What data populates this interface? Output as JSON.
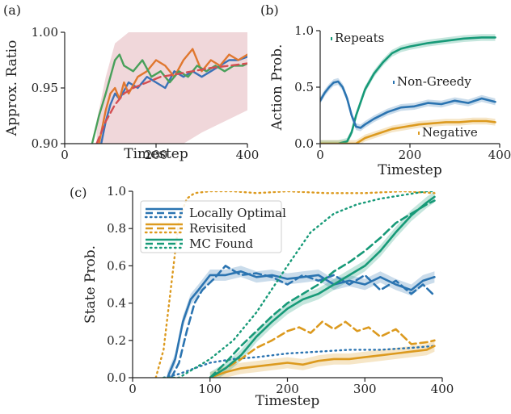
{
  "chart_data": [
    {
      "panel": "(a)",
      "type": "line",
      "xlabel": "Timestep",
      "ylabel": "Approx. Ratio",
      "xlim": [
        0,
        400
      ],
      "ylim": [
        0.9,
        1.0
      ],
      "xticks": [
        "0",
        "200",
        "400"
      ],
      "yticks": [
        "0.90",
        "0.95",
        "1.00"
      ],
      "band": {
        "color": "#e8c2c6",
        "x": [
          70,
          90,
          110,
          140,
          180,
          260,
          300,
          400
        ],
        "lower": [
          0.9,
          0.9,
          0.9,
          0.9,
          0.9,
          0.9,
          0.91,
          0.93
        ],
        "upper": [
          0.92,
          0.96,
          0.99,
          1.0,
          1.0,
          1.0,
          1.0,
          1.0
        ]
      },
      "series": [
        {
          "color": "#3a72b8",
          "x": [
            80,
            90,
            100,
            110,
            120,
            140,
            160,
            180,
            200,
            220,
            240,
            260,
            280,
            300,
            320,
            340,
            360,
            380,
            400
          ],
          "y": [
            0.9,
            0.92,
            0.935,
            0.945,
            0.94,
            0.955,
            0.95,
            0.96,
            0.955,
            0.95,
            0.965,
            0.96,
            0.965,
            0.96,
            0.965,
            0.97,
            0.975,
            0.975,
            0.978
          ]
        },
        {
          "color": "#e0772f",
          "x": [
            75,
            90,
            100,
            110,
            120,
            130,
            140,
            160,
            180,
            200,
            220,
            240,
            260,
            280,
            300,
            320,
            340,
            360,
            380,
            400
          ],
          "y": [
            0.9,
            0.93,
            0.945,
            0.95,
            0.94,
            0.955,
            0.945,
            0.96,
            0.965,
            0.975,
            0.97,
            0.96,
            0.975,
            0.985,
            0.965,
            0.975,
            0.97,
            0.98,
            0.975,
            0.98
          ]
        },
        {
          "color": "#48a05a",
          "x": [
            60,
            75,
            90,
            100,
            110,
            120,
            130,
            150,
            170,
            190,
            210,
            230,
            250,
            270,
            290,
            310,
            330,
            350,
            370,
            390,
            400
          ],
          "y": [
            0.9,
            0.925,
            0.945,
            0.96,
            0.975,
            0.98,
            0.97,
            0.965,
            0.975,
            0.96,
            0.965,
            0.955,
            0.965,
            0.96,
            0.97,
            0.965,
            0.97,
            0.965,
            0.97,
            0.97,
            0.972
          ]
        },
        {
          "color": "#d44e52",
          "dashed": true,
          "x": [
            70,
            90,
            110,
            130,
            150,
            180,
            210,
            240,
            280,
            320,
            360,
            400
          ],
          "y": [
            0.9,
            0.92,
            0.935,
            0.945,
            0.95,
            0.955,
            0.96,
            0.962,
            0.965,
            0.968,
            0.97,
            0.972
          ]
        }
      ]
    },
    {
      "panel": "(b)",
      "type": "line",
      "xlabel": "Timestep",
      "ylabel": "Action Prob.",
      "xlim": [
        0,
        400
      ],
      "ylim": [
        0.0,
        1.0
      ],
      "xticks": [
        "0",
        "200",
        "400"
      ],
      "yticks": [
        "0.0",
        "0.5",
        "1.0"
      ],
      "series": [
        {
          "name": "Repeats",
          "color": "#179a78",
          "x": [
            0,
            40,
            60,
            70,
            80,
            100,
            120,
            140,
            160,
            180,
            200,
            240,
            280,
            320,
            360,
            390
          ],
          "y": [
            0.0,
            0.0,
            0.02,
            0.1,
            0.25,
            0.48,
            0.62,
            0.72,
            0.8,
            0.84,
            0.86,
            0.89,
            0.91,
            0.93,
            0.94,
            0.94
          ]
        },
        {
          "name": "Non-Greedy",
          "color": "#2b74b1",
          "x": [
            0,
            10,
            20,
            30,
            40,
            50,
            60,
            70,
            80,
            90,
            100,
            120,
            150,
            180,
            210,
            240,
            270,
            300,
            330,
            360,
            390
          ],
          "y": [
            0.38,
            0.45,
            0.5,
            0.54,
            0.55,
            0.5,
            0.4,
            0.25,
            0.15,
            0.14,
            0.17,
            0.22,
            0.28,
            0.32,
            0.33,
            0.36,
            0.35,
            0.38,
            0.36,
            0.4,
            0.37
          ]
        },
        {
          "name": "Negative",
          "color": "#dc9a1f",
          "x": [
            0,
            80,
            100,
            130,
            160,
            190,
            220,
            250,
            280,
            310,
            340,
            370,
            390
          ],
          "y": [
            0.0,
            0.0,
            0.05,
            0.09,
            0.13,
            0.15,
            0.17,
            0.18,
            0.19,
            0.19,
            0.2,
            0.2,
            0.19
          ]
        }
      ]
    },
    {
      "panel": "(c)",
      "type": "line",
      "xlabel": "Timestep",
      "ylabel": "State Prob.",
      "xlim": [
        0,
        400
      ],
      "ylim": [
        0.0,
        1.0
      ],
      "xticks": [
        "0",
        "100",
        "200",
        "300",
        "400"
      ],
      "yticks": [
        "0.0",
        "0.2",
        "0.4",
        "0.6",
        "0.8",
        "1.0"
      ],
      "legend": {
        "placement": "upper-left",
        "entries": [
          {
            "label": "Locally Optimal",
            "color": "#2b74b1"
          },
          {
            "label": "Revisited",
            "color": "#dc9a1f"
          },
          {
            "label": "MC Found",
            "color": "#179a78"
          }
        ]
      },
      "series": [
        {
          "name": "Locally Optimal",
          "style": "solid",
          "color": "#2b74b1",
          "x": [
            45,
            55,
            65,
            75,
            85,
            100,
            120,
            140,
            160,
            180,
            200,
            220,
            240,
            260,
            280,
            300,
            320,
            340,
            360,
            375,
            390
          ],
          "y": [
            0.0,
            0.1,
            0.3,
            0.42,
            0.47,
            0.55,
            0.55,
            0.57,
            0.54,
            0.55,
            0.53,
            0.54,
            0.55,
            0.5,
            0.52,
            0.5,
            0.54,
            0.5,
            0.47,
            0.52,
            0.54
          ]
        },
        {
          "name": "Locally Optimal",
          "style": "dashed",
          "color": "#2b74b1",
          "x": [
            50,
            60,
            70,
            80,
            90,
            105,
            120,
            140,
            160,
            180,
            200,
            220,
            240,
            260,
            280,
            300,
            320,
            340,
            360,
            375,
            390
          ],
          "y": [
            0.0,
            0.08,
            0.25,
            0.4,
            0.47,
            0.53,
            0.6,
            0.55,
            0.56,
            0.54,
            0.5,
            0.55,
            0.52,
            0.55,
            0.5,
            0.55,
            0.47,
            0.52,
            0.45,
            0.5,
            0.44
          ]
        },
        {
          "name": "Locally Optimal",
          "style": "dotted",
          "color": "#2b74b1",
          "x": [
            40,
            60,
            80,
            100,
            130,
            160,
            200,
            240,
            280,
            320,
            360,
            390
          ],
          "y": [
            0.0,
            0.02,
            0.05,
            0.08,
            0.1,
            0.11,
            0.13,
            0.14,
            0.15,
            0.15,
            0.16,
            0.17
          ]
        },
        {
          "name": "Revisited",
          "style": "solid",
          "color": "#dc9a1f",
          "x": [
            100,
            120,
            140,
            160,
            180,
            200,
            220,
            240,
            260,
            280,
            300,
            320,
            340,
            360,
            380,
            390
          ],
          "y": [
            0.0,
            0.03,
            0.05,
            0.06,
            0.07,
            0.08,
            0.07,
            0.09,
            0.1,
            0.1,
            0.11,
            0.12,
            0.13,
            0.14,
            0.15,
            0.17
          ]
        },
        {
          "name": "Revisited",
          "style": "dashed",
          "color": "#dc9a1f",
          "x": [
            100,
            120,
            140,
            160,
            180,
            200,
            215,
            230,
            245,
            260,
            275,
            290,
            305,
            320,
            340,
            360,
            380,
            390
          ],
          "y": [
            0.0,
            0.05,
            0.1,
            0.16,
            0.2,
            0.25,
            0.27,
            0.24,
            0.3,
            0.26,
            0.3,
            0.25,
            0.27,
            0.22,
            0.26,
            0.18,
            0.19,
            0.2
          ]
        },
        {
          "name": "Revisited",
          "style": "dotted",
          "color": "#dc9a1f",
          "x": [
            30,
            40,
            50,
            60,
            70,
            80,
            100,
            130,
            160,
            200,
            250,
            300,
            350,
            390
          ],
          "y": [
            0.0,
            0.15,
            0.5,
            0.85,
            0.96,
            0.99,
            1.0,
            1.0,
            0.99,
            1.0,
            0.99,
            0.99,
            1.0,
            0.99
          ]
        },
        {
          "name": "MC Found",
          "style": "solid",
          "color": "#179a78",
          "x": [
            100,
            120,
            140,
            160,
            180,
            200,
            220,
            240,
            260,
            280,
            300,
            320,
            340,
            360,
            380,
            390
          ],
          "y": [
            0.0,
            0.05,
            0.12,
            0.22,
            0.3,
            0.37,
            0.42,
            0.45,
            0.5,
            0.55,
            0.6,
            0.68,
            0.78,
            0.87,
            0.94,
            0.97
          ]
        },
        {
          "name": "MC Found",
          "style": "dashed",
          "color": "#179a78",
          "x": [
            100,
            120,
            140,
            160,
            180,
            200,
            220,
            240,
            260,
            280,
            300,
            320,
            340,
            360,
            380,
            390
          ],
          "y": [
            0.0,
            0.08,
            0.17,
            0.25,
            0.33,
            0.4,
            0.45,
            0.5,
            0.57,
            0.62,
            0.68,
            0.75,
            0.83,
            0.88,
            0.93,
            0.95
          ]
        },
        {
          "name": "MC Found",
          "style": "dotted",
          "color": "#179a78",
          "x": [
            40,
            60,
            80,
            100,
            130,
            160,
            200,
            230,
            260,
            290,
            320,
            350,
            380,
            390
          ],
          "y": [
            0.0,
            0.0,
            0.05,
            0.1,
            0.2,
            0.35,
            0.6,
            0.78,
            0.88,
            0.93,
            0.96,
            0.98,
            1.0,
            1.0
          ]
        }
      ]
    }
  ]
}
